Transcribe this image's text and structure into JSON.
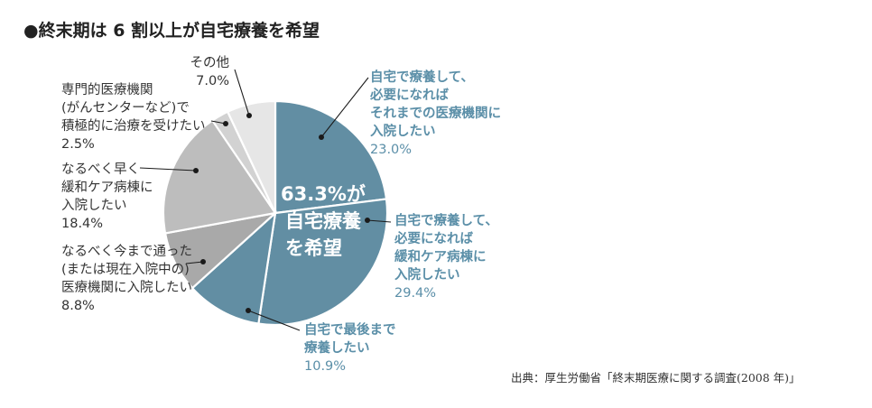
{
  "chart_data": {
    "type": "pie",
    "title": "●終末期は 6 割以上が自宅療養を希望",
    "center_label": [
      "63.3%が",
      "自宅療養",
      "を希望"
    ],
    "source": "出典：厚生労働省「終末期医療に関する調査(2008 年)」",
    "colors": {
      "home": "#628ea3",
      "dark_gray": "#a9a9a9",
      "mid_gray": "#bdbdbd",
      "light_gray": "#d2d2d2",
      "lightest_gray": "#e6e6e6",
      "label_blue": "#5b8fa8"
    },
    "slices": [
      {
        "lines": [
          "自宅で療養して、",
          "必要になれば",
          "それまでの医療機関に",
          "入院したい"
        ],
        "percent_text": "23.0%",
        "value": 23.0,
        "color": "#628ea3",
        "label_style": "blue"
      },
      {
        "lines": [
          "自宅で療養して、",
          "必要になれば",
          "緩和ケア病棟に",
          "入院したい"
        ],
        "percent_text": "29.4%",
        "value": 29.4,
        "color": "#628ea3",
        "label_style": "blue"
      },
      {
        "lines": [
          "自宅で最後まで",
          "療養したい"
        ],
        "percent_text": "10.9%",
        "value": 10.9,
        "color": "#628ea3",
        "label_style": "blue"
      },
      {
        "lines": [
          "なるべく今まで通った",
          "(または現在入院中の)",
          "医療機関に入院したい"
        ],
        "percent_text": "8.8%",
        "value": 8.8,
        "color": "#a9a9a9",
        "label_style": "gray"
      },
      {
        "lines": [
          "なるべく早く",
          "緩和ケア病棟に",
          "入院したい"
        ],
        "percent_text": "18.4%",
        "value": 18.4,
        "color": "#bdbdbd",
        "label_style": "gray"
      },
      {
        "lines": [
          "専門的医療機関",
          "(がんセンターなど)で",
          "積極的に治療を受けたい"
        ],
        "percent_text": "2.5%",
        "value": 2.5,
        "color": "#d2d2d2",
        "label_style": "gray"
      },
      {
        "lines": [
          "その他"
        ],
        "percent_text": "7.0%",
        "value": 7.0,
        "color": "#e6e6e6",
        "label_style": "gray"
      }
    ]
  }
}
